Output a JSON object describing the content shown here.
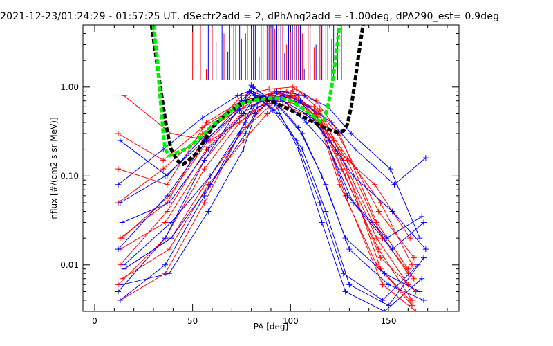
{
  "chart_data": {
    "type": "line",
    "title": "2021-12-23/01:24:29 - 01:57:25 UT, dSectr2add = 2, dPhAng2add = -1.00deg, dPA290_est=   0.9deg",
    "xlabel": "PA [deg]",
    "ylabel": "nflux [#/(cm2 s sr MeV)]",
    "xlim": [
      -6,
      186
    ],
    "ylim": [
      0.003,
      5.0
    ],
    "yscale": "log",
    "grid": false,
    "legend": "none",
    "x_ticks": [
      0,
      50,
      100,
      150
    ],
    "x_tick_labels": [
      "0",
      "50",
      "100",
      "150"
    ],
    "y_ticks": [
      0.01,
      0.1,
      1.0
    ],
    "y_tick_labels": [
      "0.01",
      "0.10",
      "1.00"
    ],
    "colors": {
      "red": "#ff0000",
      "blue": "#0000ff",
      "black": "#000000",
      "green": "#00ee00"
    },
    "series": [
      {
        "color": "red",
        "x": [
          12,
          36,
          56,
          74,
          88,
          100,
          112,
          124,
          144,
          160
        ],
        "y": [
          0.006,
          0.02,
          0.12,
          0.4,
          0.7,
          0.8,
          0.55,
          0.18,
          0.02,
          0.006
        ]
      },
      {
        "color": "red",
        "x": [
          13,
          37,
          57,
          75,
          90,
          102,
          114,
          126,
          145,
          162
        ],
        "y": [
          0.01,
          0.04,
          0.2,
          0.5,
          0.8,
          0.75,
          0.45,
          0.12,
          0.015,
          0.004
        ]
      },
      {
        "color": "red",
        "x": [
          14,
          38,
          58,
          76,
          92,
          104,
          116,
          128,
          146,
          164
        ],
        "y": [
          0.02,
          0.06,
          0.25,
          0.6,
          0.9,
          0.7,
          0.4,
          0.1,
          0.012,
          0.005
        ]
      },
      {
        "color": "red",
        "x": [
          12,
          35,
          55,
          72,
          86,
          98,
          110,
          122,
          142,
          160
        ],
        "y": [
          0.3,
          0.15,
          0.35,
          0.6,
          0.8,
          0.9,
          0.6,
          0.25,
          0.03,
          0.008
        ]
      },
      {
        "color": "red",
        "x": [
          15,
          39,
          59,
          77,
          91,
          103,
          117,
          129,
          147,
          163
        ],
        "y": [
          0.8,
          0.3,
          0.25,
          0.45,
          0.7,
          0.65,
          0.35,
          0.15,
          0.02,
          0.007
        ]
      },
      {
        "color": "red",
        "x": [
          13,
          36,
          56,
          74,
          89,
          101,
          113,
          125,
          144,
          161
        ],
        "y": [
          0.004,
          0.008,
          0.05,
          0.3,
          0.6,
          0.9,
          0.5,
          0.08,
          0.01,
          0.004
        ]
      },
      {
        "color": "red",
        "x": [
          12,
          37,
          57,
          75,
          90,
          102,
          114,
          126,
          146,
          162
        ],
        "y": [
          0.12,
          0.08,
          0.4,
          0.7,
          0.85,
          0.8,
          0.5,
          0.2,
          0.05,
          0.01
        ]
      },
      {
        "color": "red",
        "x": [
          14,
          38,
          58,
          76,
          88,
          100,
          112,
          124,
          145,
          163
        ],
        "y": [
          0.007,
          0.015,
          0.08,
          0.25,
          0.5,
          0.7,
          0.6,
          0.3,
          0.04,
          0.012
        ]
      },
      {
        "color": "red",
        "x": [
          13,
          36,
          56,
          74,
          92,
          104,
          116,
          128,
          147,
          164
        ],
        "y": [
          0.015,
          0.03,
          0.15,
          0.45,
          0.75,
          0.8,
          0.35,
          0.06,
          0.006,
          0.003
        ]
      },
      {
        "color": "red",
        "x": [
          12,
          35,
          55,
          73,
          87,
          99,
          111,
          123,
          143,
          161
        ],
        "y": [
          0.05,
          0.12,
          0.3,
          0.55,
          0.7,
          0.6,
          0.45,
          0.2,
          0.08,
          0.02
        ]
      },
      {
        "color": "red",
        "x": [
          15,
          39,
          59,
          77,
          91,
          103,
          115,
          127,
          146,
          162
        ],
        "y": [
          0.009,
          0.02,
          0.1,
          0.35,
          0.8,
          0.95,
          0.55,
          0.15,
          0.009,
          0.0035
        ]
      },
      {
        "color": "red",
        "x": [
          13,
          37,
          57,
          75,
          89,
          101,
          113,
          125,
          144,
          160
        ],
        "y": [
          0.02,
          0.05,
          0.3,
          0.8,
          0.95,
          1.0,
          0.7,
          0.3,
          0.03,
          0.009
        ]
      },
      {
        "color": "blue",
        "x": [
          12,
          36,
          56,
          74,
          80,
          92,
          104,
          116,
          128,
          148,
          166
        ],
        "y": [
          0.005,
          0.02,
          0.15,
          0.6,
          0.9,
          0.7,
          0.35,
          0.1,
          0.02,
          0.008,
          0.005
        ]
      },
      {
        "color": "blue",
        "x": [
          13,
          37,
          57,
          75,
          81,
          94,
          106,
          118,
          130,
          150,
          168
        ],
        "y": [
          0.25,
          0.1,
          0.3,
          0.7,
          1.0,
          0.6,
          0.3,
          0.08,
          0.015,
          0.006,
          0.004
        ]
      },
      {
        "color": "blue",
        "x": [
          14,
          38,
          58,
          76,
          82,
          95,
          108,
          120,
          132,
          152,
          168
        ],
        "y": [
          0.03,
          0.05,
          0.2,
          0.5,
          0.8,
          0.75,
          0.4,
          0.2,
          0.05,
          0.015,
          0.03
        ]
      },
      {
        "color": "blue",
        "x": [
          12,
          35,
          55,
          73,
          79,
          91,
          103,
          115,
          127,
          147,
          165
        ],
        "y": [
          0.08,
          0.2,
          0.45,
          0.8,
          0.9,
          0.55,
          0.25,
          0.05,
          0.008,
          0.004,
          0.01
        ]
      },
      {
        "color": "blue",
        "x": [
          15,
          39,
          59,
          77,
          83,
          96,
          109,
          121,
          133,
          153,
          169
        ],
        "y": [
          0.01,
          0.03,
          0.1,
          0.4,
          0.7,
          0.8,
          0.6,
          0.4,
          0.2,
          0.08,
          0.16
        ]
      },
      {
        "color": "blue",
        "x": [
          13,
          36,
          56,
          74,
          80,
          93,
          105,
          117,
          129,
          149,
          167
        ],
        "y": [
          0.004,
          0.01,
          0.06,
          0.3,
          0.6,
          0.9,
          0.7,
          0.3,
          0.06,
          0.02,
          0.035
        ]
      },
      {
        "color": "blue",
        "x": [
          12,
          37,
          57,
          75,
          81,
          94,
          106,
          118,
          130,
          150,
          168
        ],
        "y": [
          0.015,
          0.06,
          0.25,
          0.65,
          0.85,
          0.5,
          0.2,
          0.04,
          0.006,
          0.0035,
          0.012
        ]
      },
      {
        "color": "blue",
        "x": [
          14,
          38,
          58,
          76,
          82,
          95,
          107,
          119,
          131,
          151,
          166
        ],
        "y": [
          0.006,
          0.008,
          0.04,
          0.2,
          0.5,
          0.9,
          0.8,
          0.6,
          0.3,
          0.12,
          0.02
        ]
      },
      {
        "color": "blue",
        "x": [
          13,
          36,
          56,
          74,
          80,
          92,
          104,
          116,
          128,
          148,
          167
        ],
        "y": [
          0.05,
          0.1,
          0.25,
          0.55,
          1.05,
          0.65,
          0.2,
          0.03,
          0.005,
          0.003,
          0.007
        ]
      },
      {
        "color": "blue",
        "x": [
          15,
          39,
          59,
          77,
          83,
          96,
          108,
          120,
          132,
          152,
          169
        ],
        "y": [
          0.009,
          0.02,
          0.08,
          0.3,
          0.6,
          0.7,
          0.5,
          0.25,
          0.1,
          0.04,
          0.015
        ]
      }
    ],
    "reference_curves": [
      {
        "color": "black",
        "style": "dashed",
        "x": [
          29,
          31,
          33,
          35,
          37,
          39,
          42,
          45,
          48,
          52,
          56,
          60,
          65,
          70,
          75,
          80,
          85,
          90,
          95,
          100,
          105,
          110,
          115,
          120,
          124,
          127,
          129,
          131,
          133,
          135,
          137
        ],
        "y": [
          5.0,
          2.5,
          1.2,
          0.6,
          0.32,
          0.2,
          0.15,
          0.135,
          0.15,
          0.18,
          0.25,
          0.35,
          0.45,
          0.55,
          0.65,
          0.72,
          0.75,
          0.7,
          0.62,
          0.55,
          0.48,
          0.42,
          0.37,
          0.33,
          0.31,
          0.32,
          0.38,
          0.6,
          1.2,
          2.5,
          5.0
        ]
      },
      {
        "color": "green",
        "style": "dashed",
        "x": [
          30,
          32,
          33,
          34,
          35,
          36,
          38,
          40,
          44,
          48,
          52,
          56,
          60,
          65,
          70,
          75,
          80,
          85,
          90,
          95,
          100,
          105,
          110,
          115,
          117,
          119,
          121,
          123,
          124,
          125
        ],
        "y": [
          5.0,
          2.0,
          1.0,
          0.55,
          0.3,
          0.2,
          0.17,
          0.175,
          0.19,
          0.21,
          0.25,
          0.3,
          0.37,
          0.45,
          0.55,
          0.65,
          0.7,
          0.73,
          0.75,
          0.75,
          0.7,
          0.6,
          0.5,
          0.41,
          0.42,
          0.6,
          1.0,
          2.0,
          3.2,
          5.0
        ]
      }
    ],
    "vertical_markers": {
      "y_bottom": 1.2,
      "red": {
        "x": [
          50,
          54,
          57,
          60,
          63,
          66,
          69,
          72,
          75,
          78,
          81,
          84,
          86,
          88,
          90,
          92,
          94,
          96,
          98,
          100,
          102,
          104,
          106,
          109,
          112,
          115,
          118,
          121
        ],
        "y_top": [
          5.0,
          5.0,
          1.6,
          5.0,
          5.0,
          4.0,
          5.0,
          5.0,
          3.5,
          5.0,
          5.0,
          2.2,
          5.0,
          5.0,
          5.0,
          4.5,
          5.0,
          5.0,
          3.0,
          5.0,
          5.0,
          5.0,
          4.0,
          5.0,
          2.8,
          5.0,
          5.0,
          3.5
        ]
      },
      "blue": {
        "x": [
          58,
          62,
          65,
          68,
          71,
          74,
          77,
          80,
          82,
          85,
          87,
          89,
          91,
          93,
          95,
          97,
          99,
          101,
          103,
          105,
          107,
          110,
          113,
          116,
          119,
          122,
          124,
          126
        ],
        "y_top": [
          5.0,
          3.2,
          5.0,
          2.5,
          5.0,
          5.0,
          4.0,
          5.0,
          5.0,
          5.0,
          3.8,
          5.0,
          5.0,
          5.0,
          5.0,
          2.4,
          5.0,
          5.0,
          5.0,
          5.0,
          1.6,
          5.0,
          3.0,
          5.0,
          5.0,
          5.0,
          4.2,
          5.0
        ]
      }
    }
  }
}
